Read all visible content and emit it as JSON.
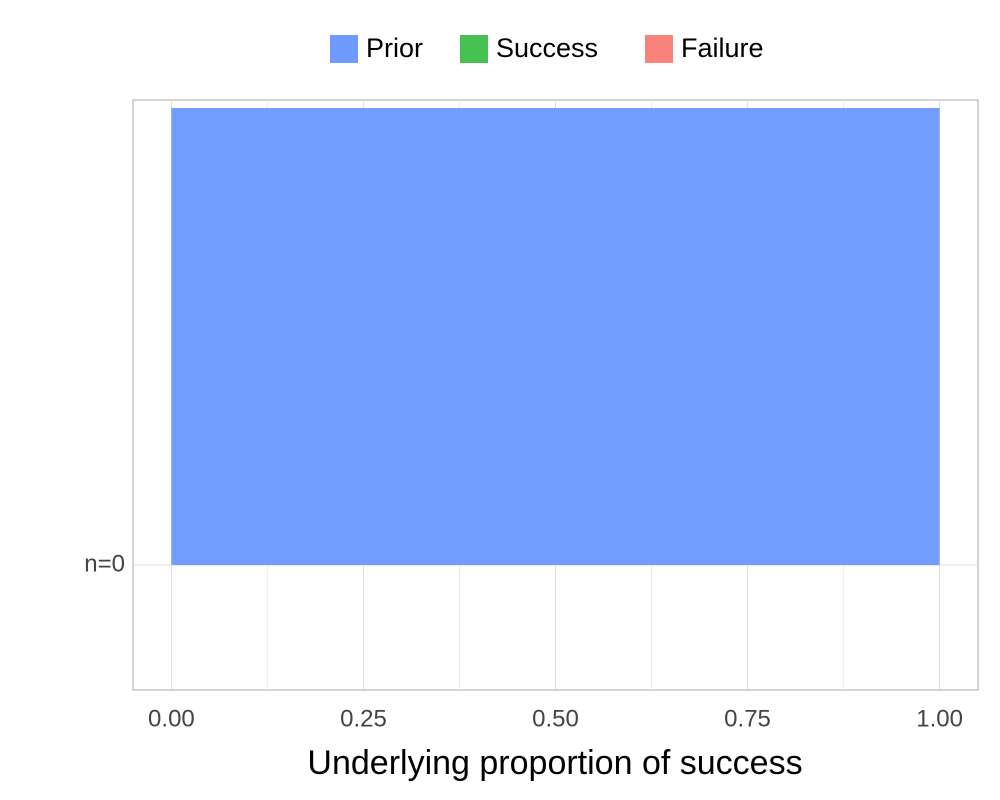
{
  "chart_data": {
    "type": "ridgeline",
    "x_label": "Underlying proportion of success",
    "categories": [
      "n=0"
    ],
    "series": [
      {
        "name": "Prior",
        "color": "#6f9bff",
        "x": [
          0,
          1
        ],
        "values": [
          1,
          1
        ]
      },
      {
        "name": "Success",
        "color": "#47c152",
        "x": [],
        "values": []
      },
      {
        "name": "Failure",
        "color": "#f8837d",
        "x": [],
        "values": []
      }
    ],
    "xlim": [
      -0.05,
      1.05
    ],
    "xticks": [
      {
        "value": 0,
        "label": "0.00"
      },
      {
        "value": 0.25,
        "label": "0.25"
      },
      {
        "value": 0.5,
        "label": "0.50"
      },
      {
        "value": 0.75,
        "label": "0.75"
      },
      {
        "value": 1,
        "label": "1.00"
      }
    ],
    "xminor": [
      0.125,
      0.375,
      0.625,
      0.875
    ],
    "grid": true,
    "legend": "top"
  }
}
